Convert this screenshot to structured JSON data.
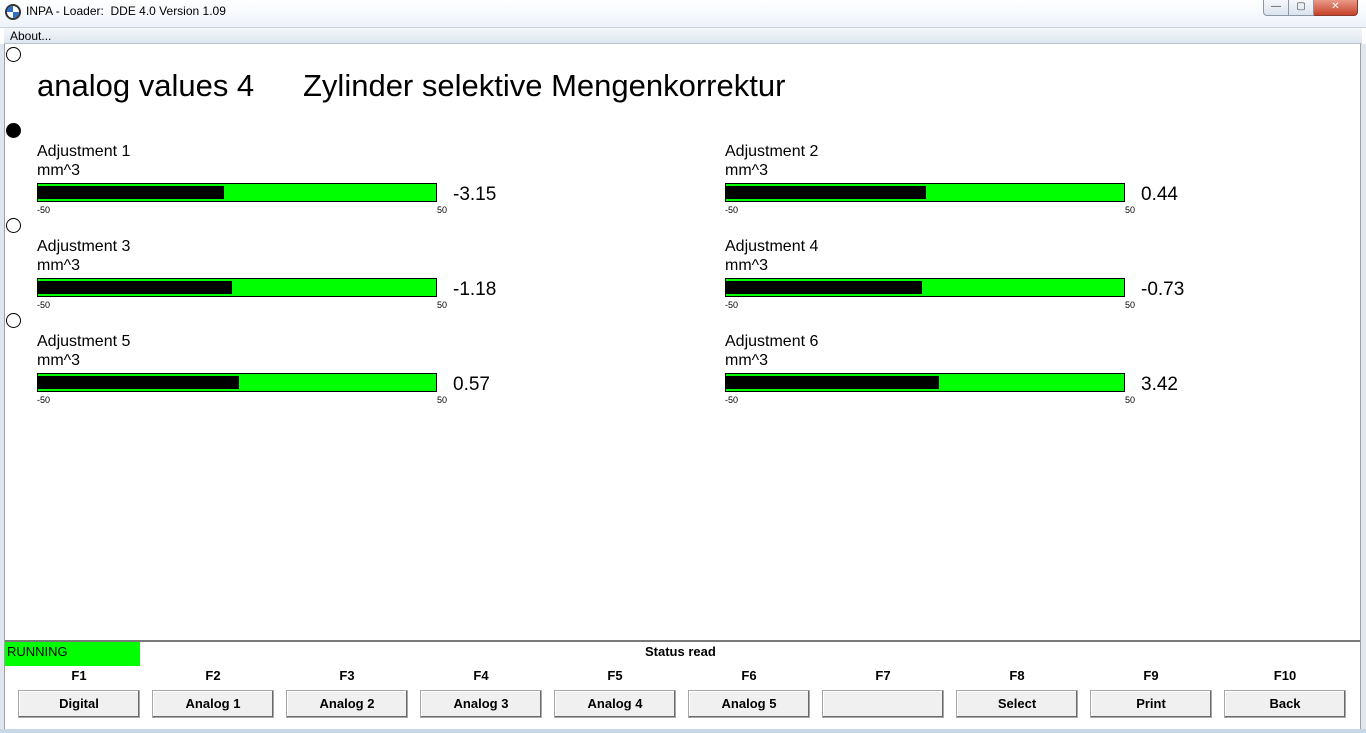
{
  "window": {
    "title": "INPA - Loader:  DDE 4.0 Version 1.09",
    "controls": {
      "minimize": "—",
      "maximize": "▢",
      "close": "✕"
    }
  },
  "menu": {
    "items": [
      {
        "label": "About..."
      }
    ]
  },
  "page": {
    "heading": "analog values 4",
    "title": "Zylinder selektive Mengenkorrektur"
  },
  "selectors": [
    {
      "selected": false
    },
    {
      "selected": true
    },
    {
      "selected": false
    },
    {
      "selected": false
    }
  ],
  "gauges": [
    {
      "label": "Adjustment 1",
      "unit": "mm^3",
      "min": "-50",
      "max": "50",
      "value": "-3.15",
      "fill_fraction": 0.468
    },
    {
      "label": "Adjustment 2",
      "unit": "mm^3",
      "min": "-50",
      "max": "50",
      "value": "0.44",
      "fill_fraction": 0.502
    },
    {
      "label": "Adjustment 3",
      "unit": "mm^3",
      "min": "-50",
      "max": "50",
      "value": "-1.18",
      "fill_fraction": 0.488
    },
    {
      "label": "Adjustment 4",
      "unit": "mm^3",
      "min": "-50",
      "max": "50",
      "value": "-0.73",
      "fill_fraction": 0.493
    },
    {
      "label": "Adjustment 5",
      "unit": "mm^3",
      "min": "-50",
      "max": "50",
      "value": "0.57",
      "fill_fraction": 0.506
    },
    {
      "label": "Adjustment 6",
      "unit": "mm^3",
      "min": "-50",
      "max": "50",
      "value": "3.42",
      "fill_fraction": 0.534
    }
  ],
  "status": {
    "running": "RUNNING",
    "message": "Status read"
  },
  "function_keys": [
    {
      "key": "F1",
      "label": "Digital"
    },
    {
      "key": "F2",
      "label": "Analog 1"
    },
    {
      "key": "F3",
      "label": "Analog 2"
    },
    {
      "key": "F4",
      "label": "Analog 3"
    },
    {
      "key": "F5",
      "label": "Analog 4"
    },
    {
      "key": "F6",
      "label": "Analog 5"
    },
    {
      "key": "F7",
      "label": ""
    },
    {
      "key": "F8",
      "label": "Select"
    },
    {
      "key": "F9",
      "label": "Print"
    },
    {
      "key": "F10",
      "label": "Back"
    }
  ],
  "colors": {
    "bar_background": "#00ff00",
    "bar_fill": "#000000",
    "running_badge": "#00ff00"
  }
}
